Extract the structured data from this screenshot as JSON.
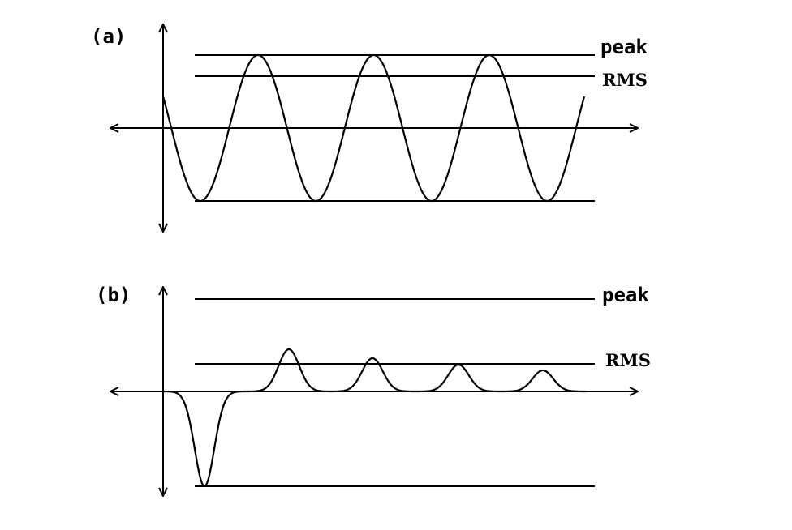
{
  "panels": [
    {
      "label": "(a)",
      "level_labels": {
        "peak": "peak",
        "rms": "RMS"
      },
      "waveform": "sinusoid"
    },
    {
      "label": "(b)",
      "level_labels": {
        "peak": "peak",
        "rms": "RMS"
      },
      "waveform": "decaying pulse train"
    }
  ],
  "colors": {
    "ink": "#000000",
    "background": "#ffffff"
  }
}
